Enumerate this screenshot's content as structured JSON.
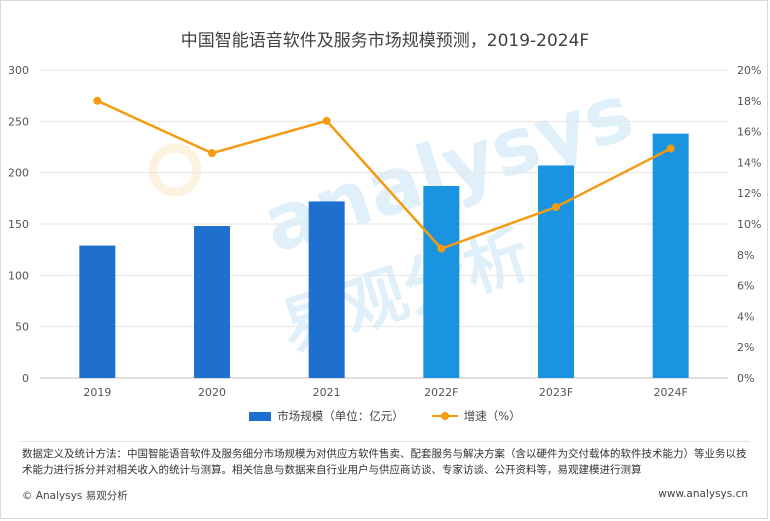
{
  "title": "中国智能语音软件及服务市场规模预测，2019-2024F",
  "legend": {
    "bar_label": "市场规模（单位：亿元）",
    "line_label": "增速（%）"
  },
  "watermark": {
    "latin": "analysys",
    "cn": "易观分析"
  },
  "note": "数据定义及统计方法：中国智能语音软件及服务细分市场规模为对供应方软件售卖、配套服务与解决方案（含以硬件为交付载体的软件技术能力）等业务以技术能力进行拆分并对相关收入的统计与测算。相关信息与数据来自行业用户与供应商访谈、专家访谈、公开资料等，易观建模进行测算",
  "footer": {
    "left": "© Analysys 易观分析",
    "right": "www.analysys.cn"
  },
  "colors": {
    "bar_actual": "#1f6fcf",
    "bar_forecast": "#1a93e0",
    "line": "#f39c12",
    "grid": "#e6e6e6"
  },
  "chart_data": {
    "type": "bar",
    "categories": [
      "2019",
      "2020",
      "2021",
      "2022F",
      "2023F",
      "2024F"
    ],
    "series": [
      {
        "name": "市场规模（单位：亿元）",
        "type": "bar",
        "axis": "left",
        "values": [
          129,
          148,
          172,
          187,
          207,
          238
        ]
      },
      {
        "name": "增速（%）",
        "type": "line",
        "axis": "right",
        "values": [
          18.0,
          14.6,
          16.7,
          8.4,
          11.1,
          14.9
        ]
      }
    ],
    "left_axis": {
      "min": 0,
      "max": 300,
      "ticks": [
        "0",
        "50",
        "100",
        "150",
        "200",
        "250",
        "300"
      ]
    },
    "right_axis": {
      "min": 0,
      "max": 20,
      "ticks": [
        "0%",
        "2%",
        "4%",
        "6%",
        "8%",
        "10%",
        "12%",
        "14%",
        "16%",
        "18%",
        "20%"
      ]
    },
    "grid": true,
    "legend_position": "bottom"
  }
}
